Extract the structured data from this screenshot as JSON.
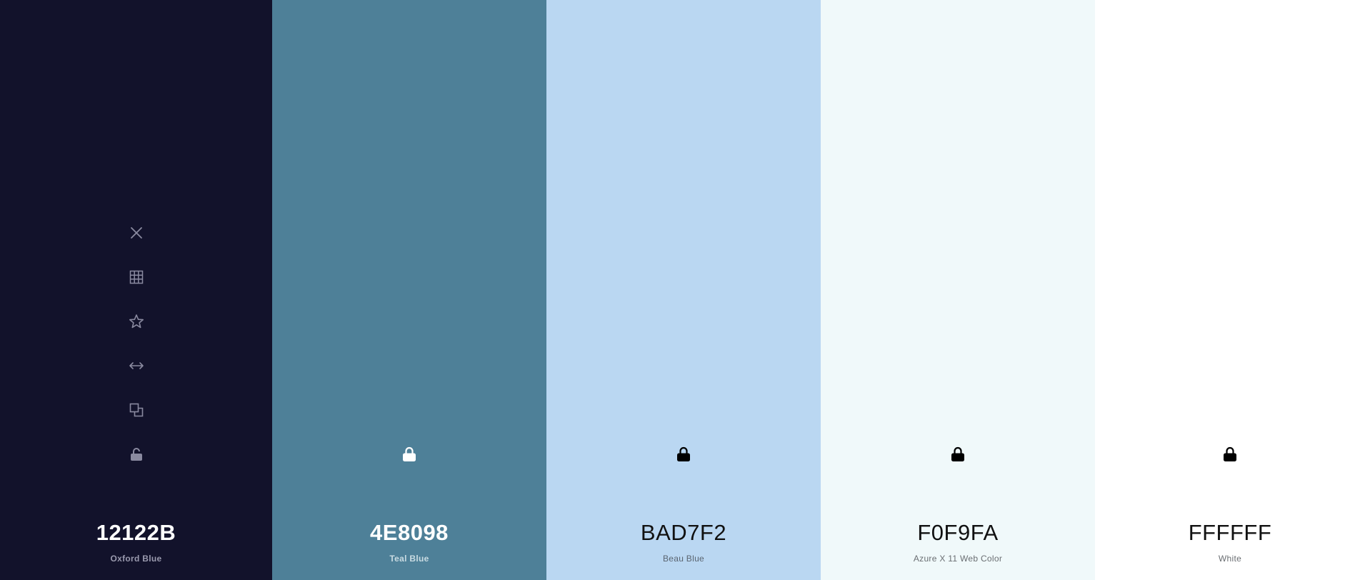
{
  "swatches": [
    {
      "hex": "12122B",
      "name": "Oxford Blue",
      "color": "#12122B",
      "locked": false
    },
    {
      "hex": "4E8098",
      "name": "Teal Blue",
      "color": "#4E8098",
      "locked": true
    },
    {
      "hex": "BAD7F2",
      "name": "Beau Blue",
      "color": "#BAD7F2",
      "locked": true
    },
    {
      "hex": "F0F9FA",
      "name": "Azure X 11 Web Color",
      "color": "#F0F9FA",
      "locked": true
    },
    {
      "hex": "FFFFFF",
      "name": "White",
      "color": "#FFFFFF",
      "locked": true
    }
  ],
  "toolbar_icons": [
    "close-icon",
    "grid-icon",
    "star-icon",
    "arrows-horizontal-icon",
    "copy-icon",
    "unlock-icon"
  ]
}
